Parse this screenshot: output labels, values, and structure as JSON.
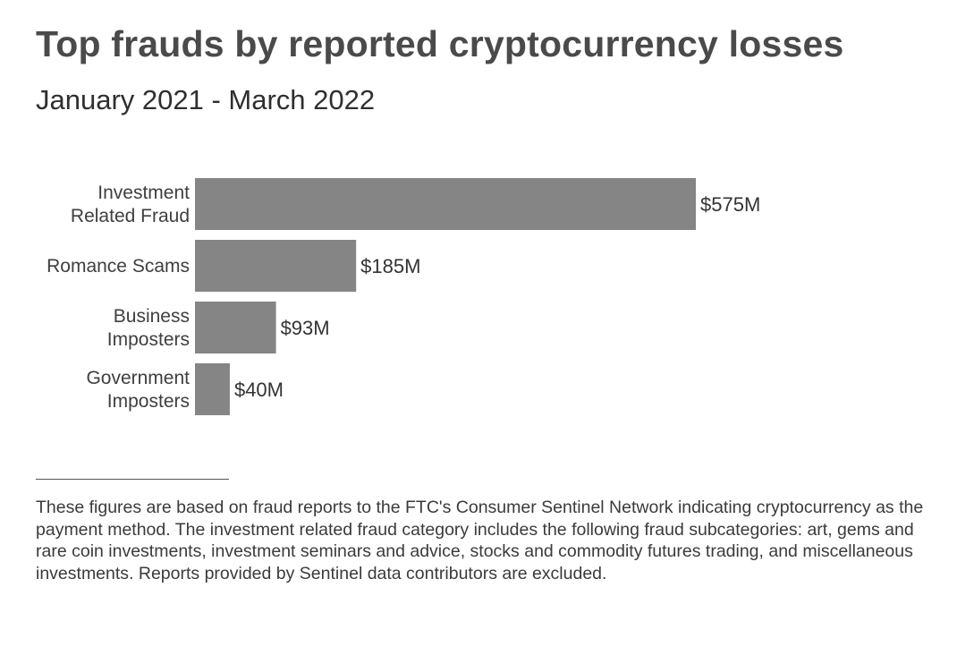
{
  "title": "Top frauds by reported cryptocurrency losses",
  "subtitle": "January 2021 - March 2022",
  "footnote": "These figures are based on fraud reports to the FTC's Consumer Sentinel Network indicating cryptocurrency as the payment method. The investment related fraud category includes the following fraud subcategories: art, gems and rare coin investments, investment seminars and advice, stocks and commodity futures trading, and miscellaneous investments. Reports provided by Sentinel data contributors are excluded.",
  "chart_data": {
    "type": "bar",
    "orientation": "horizontal",
    "title": "Top frauds by reported cryptocurrency losses",
    "subtitle": "January 2021 - March 2022",
    "categories": [
      [
        "Investment",
        "Related Fraud"
      ],
      [
        "Romance Scams"
      ],
      [
        "Business",
        "Imposters"
      ],
      [
        "Government",
        "Imposters"
      ]
    ],
    "values": [
      575,
      185,
      93,
      40
    ],
    "value_labels": [
      "$575M",
      "$185M",
      "$93M",
      "$40M"
    ],
    "unit": "$M",
    "xlim": [
      0,
      575
    ],
    "grid": false,
    "legend": "none",
    "bar_color": "#858585"
  }
}
